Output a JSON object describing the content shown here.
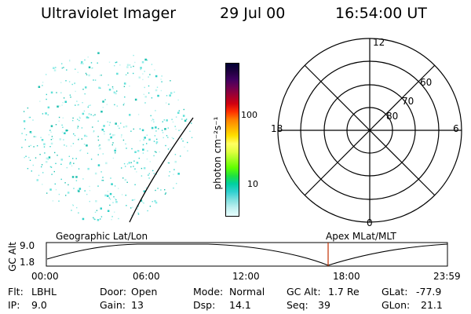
{
  "header": {
    "instrument": "Ultraviolet Imager",
    "date": "29 Jul 00",
    "time": "16:54:00 UT"
  },
  "colorbar": {
    "unit_label": "photon cm⁻²s⁻¹",
    "ticks": [
      "100",
      "10"
    ],
    "colors": [
      "#000033",
      "#200040",
      "#400060",
      "#700050",
      "#a00030",
      "#d00010",
      "#ff3000",
      "#ff8000",
      "#ffb000",
      "#ffe000",
      "#ffff60",
      "#e0ff40",
      "#a0ff20",
      "#60ff00",
      "#20e040",
      "#00d0a0",
      "#30d0d0",
      "#80e0e0",
      "#c0f0f0",
      "#e8ffff"
    ]
  },
  "polar_plot": {
    "mlt_labels": {
      "top": "12",
      "left": "18",
      "right": "6",
      "bottom": "0"
    },
    "lat_labels": [
      "60",
      "70",
      "80"
    ]
  },
  "timeline": {
    "y_axis_label": "GC Alt",
    "y_ticks": [
      "9.0",
      "1.8"
    ],
    "left_caption": "Geographic Lat/Lon",
    "right_caption": "Apex MLat/MLT",
    "x_ticks": [
      "00:00",
      "06:00",
      "12:00",
      "18:00",
      "23:59"
    ]
  },
  "status": {
    "flt_label": "Flt:",
    "flt_value": "LBHL",
    "ip_label": "IP:",
    "ip_value": "9.0",
    "door_label": "Door:",
    "door_value": "Open",
    "gain_label": "Gain:",
    "gain_value": "13",
    "mode_label": "Mode:",
    "mode_value": "Normal",
    "dsp_label": "Dsp:",
    "dsp_value": "14.1",
    "gcalt_label": "GC Alt:",
    "gcalt_value": "1.7 Re",
    "seq_label": "Seq:",
    "seq_value": "39",
    "glat_label": "GLat:",
    "glat_value": "-77.9",
    "glon_label": "GLon:",
    "glon_value": "21.1"
  }
}
